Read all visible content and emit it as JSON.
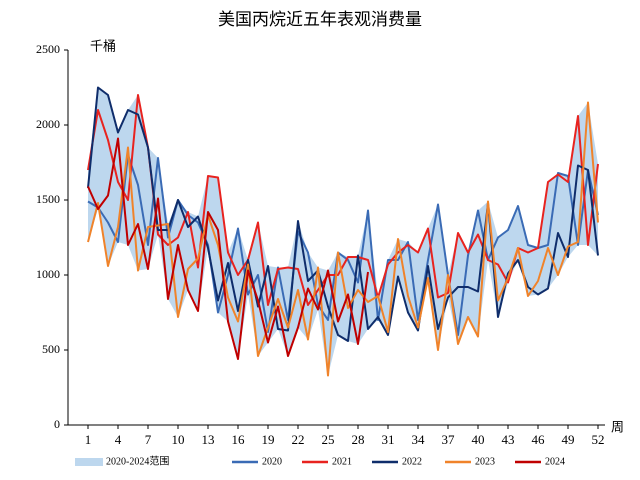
{
  "chart_data": {
    "type": "line",
    "title": "美国丙烷近五年表观消费量",
    "y_label": "千桶",
    "x_label": "周",
    "x": [
      1,
      2,
      3,
      4,
      5,
      6,
      7,
      8,
      9,
      10,
      11,
      12,
      13,
      14,
      15,
      16,
      17,
      18,
      19,
      20,
      21,
      22,
      23,
      24,
      25,
      26,
      27,
      28,
      29,
      30,
      31,
      32,
      33,
      34,
      35,
      36,
      37,
      38,
      39,
      40,
      41,
      42,
      43,
      44,
      45,
      46,
      47,
      48,
      49,
      50,
      51,
      52
    ],
    "xlim": [
      -1,
      52.7
    ],
    "xticks": [
      1,
      4,
      7,
      10,
      13,
      16,
      19,
      22,
      25,
      28,
      31,
      34,
      37,
      40,
      43,
      46,
      49,
      52
    ],
    "ylim": [
      0,
      2500
    ],
    "yticks": [
      0,
      500,
      1000,
      1500,
      2000,
      2500
    ],
    "band": {
      "name": "2020-2024范围",
      "color": "#bdd7ee"
    },
    "series": [
      {
        "name": "2020",
        "color": "#3a6bb5",
        "values": [
          1490,
          1450,
          1350,
          1220,
          1800,
          1600,
          1200,
          1780,
          1250,
          1500,
          1400,
          1350,
          1200,
          750,
          1000,
          1310,
          870,
          1000,
          620,
          1050,
          700,
          1290,
          1150,
          800,
          700,
          1150,
          1100,
          950,
          1430,
          700,
          1100,
          1100,
          1220,
          700,
          1100,
          1470,
          1000,
          600,
          1130,
          1430,
          1100,
          1250,
          1300,
          1460,
          1200,
          1180,
          1200,
          1680,
          1660,
          1200,
          1700,
          1400
        ]
      },
      {
        "name": "2021",
        "color": "#e8231f",
        "values": [
          1700,
          2100,
          1900,
          1620,
          1500,
          2200,
          1850,
          1270,
          1200,
          1250,
          1420,
          1050,
          1660,
          1650,
          1150,
          1000,
          1100,
          1350,
          800,
          1040,
          1050,
          1040,
          800,
          900,
          1000,
          1000,
          1120,
          1120,
          1100,
          850,
          1070,
          1150,
          1200,
          1150,
          1310,
          850,
          880,
          1280,
          1150,
          1270,
          1100,
          1070,
          950,
          1180,
          1150,
          1180,
          1620,
          1670,
          1620,
          2060,
          1200,
          1740
        ]
      },
      {
        "name": "2022",
        "color": "#0f2d6b",
        "values": [
          1580,
          2250,
          2200,
          1950,
          2100,
          2070,
          1850,
          1300,
          1300,
          1500,
          1320,
          1390,
          1180,
          830,
          1080,
          760,
          1100,
          790,
          1060,
          640,
          630,
          1360,
          960,
          1030,
          790,
          600,
          560,
          1130,
          640,
          720,
          600,
          990,
          750,
          630,
          1060,
          640,
          850,
          920,
          920,
          890,
          1480,
          720,
          1010,
          1100,
          920,
          870,
          910,
          1280,
          1120,
          1730,
          1700,
          1130
        ]
      },
      {
        "name": "2023",
        "color": "#f0832a",
        "values": [
          1220,
          1480,
          1060,
          1320,
          1850,
          1030,
          1320,
          1330,
          1340,
          720,
          1040,
          1110,
          1400,
          1200,
          850,
          690,
          1070,
          460,
          650,
          840,
          650,
          900,
          570,
          1050,
          330,
          1150,
          780,
          900,
          820,
          860,
          620,
          1240,
          860,
          650,
          980,
          500,
          1000,
          540,
          720,
          590,
          1490,
          830,
          980,
          1180,
          860,
          960,
          1180,
          1000,
          1190,
          1220,
          2150,
          1350
        ]
      },
      {
        "name": "2024",
        "color": "#c00000",
        "values": [
          1590,
          1440,
          1530,
          1910,
          1200,
          1340,
          1040,
          1510,
          840,
          1200,
          900,
          760,
          1420,
          1300,
          690,
          440,
          1030,
          830,
          550,
          790,
          460,
          650,
          910,
          770,
          1030,
          690,
          870,
          540,
          1020,
          null,
          null,
          null,
          null,
          null,
          null,
          null,
          null,
          null,
          null,
          null,
          null,
          null,
          null,
          null,
          null,
          null,
          null,
          null,
          null,
          null,
          null,
          null
        ]
      }
    ]
  }
}
